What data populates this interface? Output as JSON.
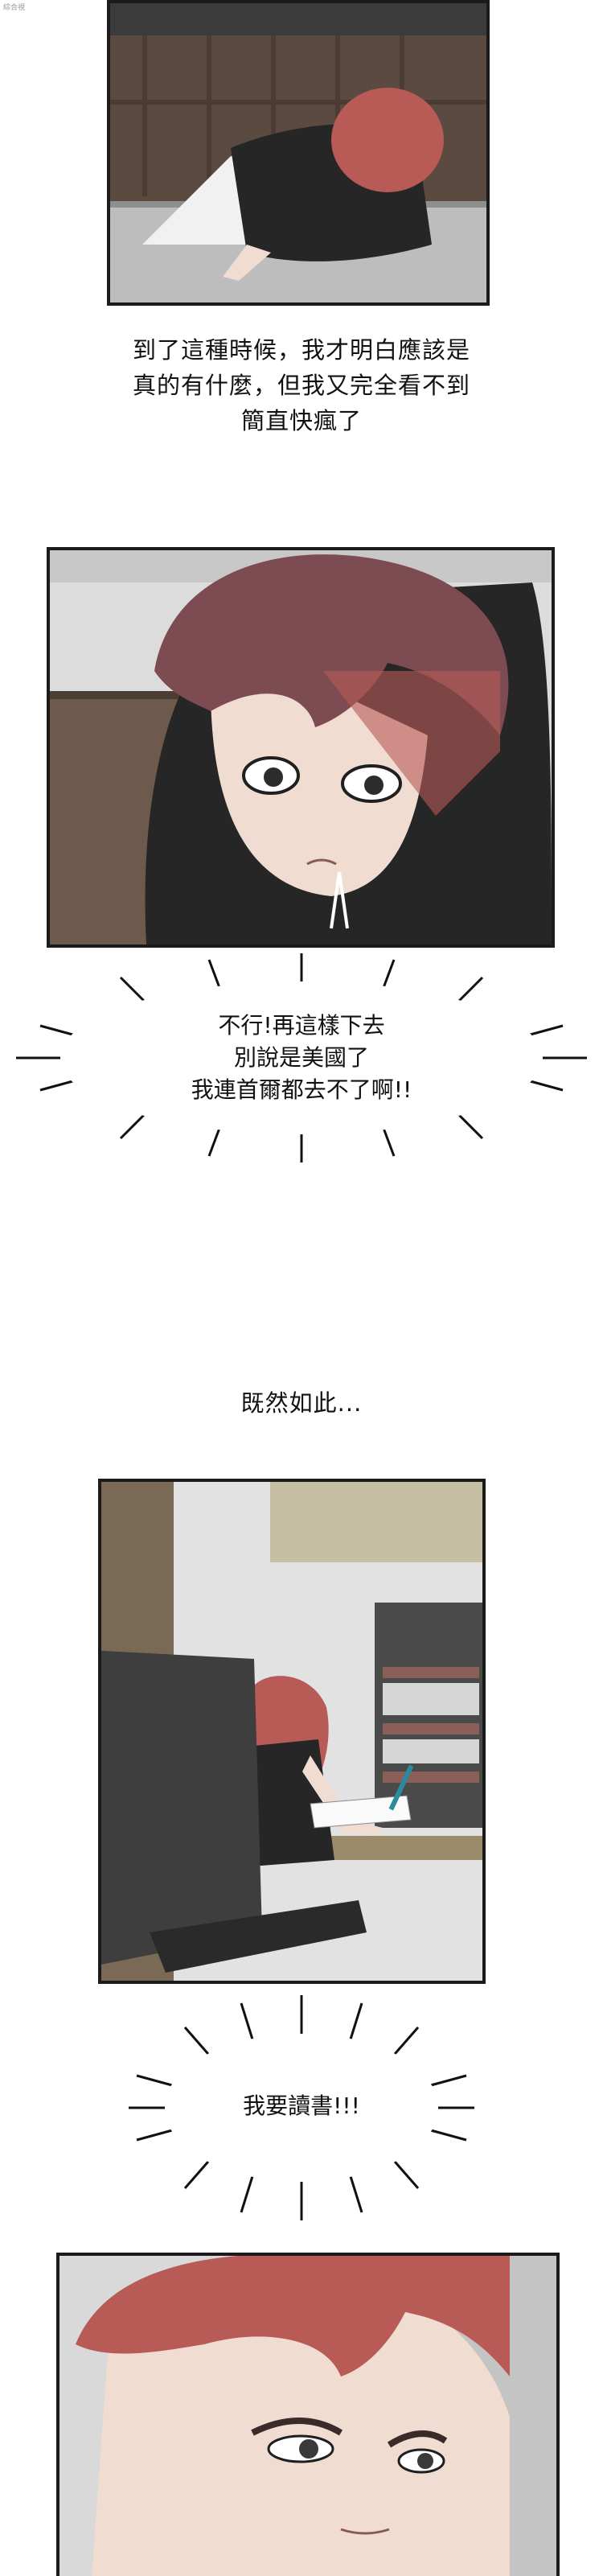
{
  "watermark": "綜合視",
  "captions": {
    "realize": [
      "到了這種時候，我才明白應該是",
      "真的有什麼，但我又完全看不到",
      "簡直快瘋了"
    ],
    "then": "既然如此..."
  },
  "bursts": {
    "cannot_continue": [
      "不行!再這樣下去",
      "別說是美國了",
      "我連首爾都去不了啊!!"
    ],
    "study": "我要讀書!!!"
  },
  "colors": {
    "hair": "#b85a56",
    "hoodie": "#262626",
    "wall": "#dcdcdc",
    "floor": "#b8b8b8",
    "wood": "#6e5a4c",
    "skin": "#f0dcd0",
    "frame": "#1b1b1b"
  }
}
